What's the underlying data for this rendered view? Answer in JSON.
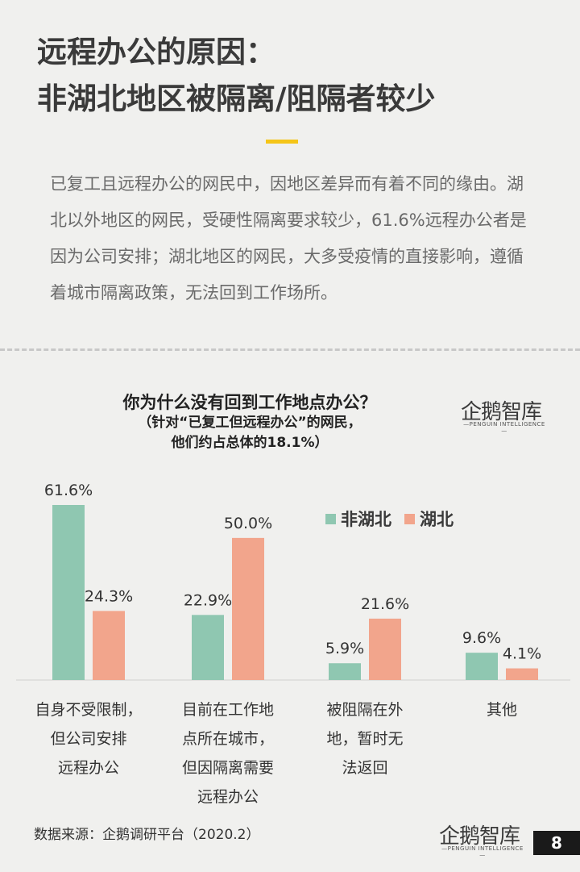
{
  "page": {
    "title_line1": "远程办公的原因：",
    "title_line2": "非湖北地区被隔离/阻隔者较少",
    "intro": "已复工且远程办公的网民中，因地区差异而有着不同的缘由。湖北以外地区的网民，受硬性隔离要求较少，61.6%远程办公者是因为公司安排；湖北地区的网民，大多受疫情的直接影响，遵循着城市隔离政策，无法回到工作场所。",
    "source": "数据来源：企鹅调研平台（2020.2）",
    "page_number": "8",
    "logo_text": "企鹅智库",
    "logo_sub": "—PENGUIN INTELLIGENCE—"
  },
  "chart_data": {
    "type": "bar",
    "title": "你为什么没有回到工作地点办公？",
    "subtitle_line1": "（针对“已复工但远程办公”的网民，",
    "subtitle_line2": "他们约占总体的18.1%）",
    "categories": [
      [
        "自身不受限制，",
        "但公司安排",
        "远程办公"
      ],
      [
        "目前在工作地",
        "点所在城市，",
        "但因隔离需要",
        "远程办公"
      ],
      [
        "被阻隔在外",
        "地，暂时无",
        "法返回"
      ],
      [
        "其他"
      ]
    ],
    "series": [
      {
        "name": "非湖北",
        "color": "#8fc7b1",
        "values": [
          61.6,
          22.9,
          5.9,
          9.6
        ],
        "labels": [
          "61.6%",
          "22.9%",
          "5.9%",
          "9.6%"
        ]
      },
      {
        "name": "湖北",
        "color": "#f2a58c",
        "values": [
          24.3,
          50.0,
          21.6,
          4.1
        ],
        "labels": [
          "24.3%",
          "50.0%",
          "21.6%",
          "4.1%"
        ]
      }
    ],
    "ylim": [
      0,
      61.6
    ],
    "legend_position": "top-right",
    "grid": false
  }
}
